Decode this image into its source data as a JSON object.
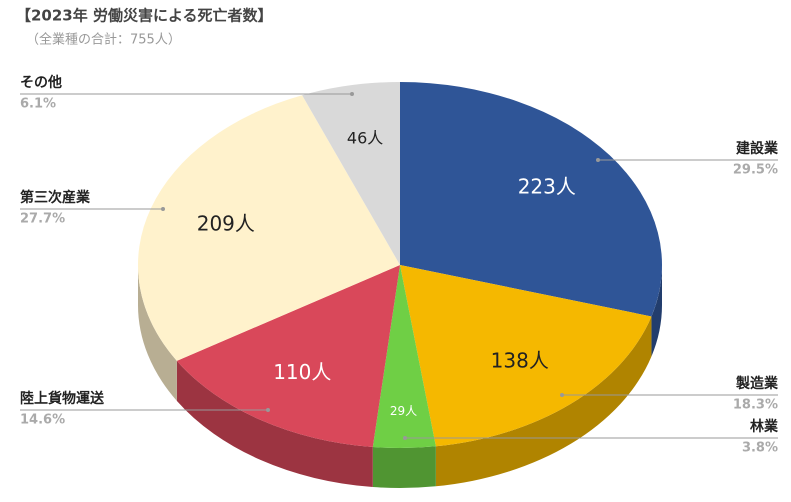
{
  "chart_data": {
    "type": "pie3d",
    "title": "【2023年 労働災害による死亡者数】",
    "subtitle": "（全業種の合計：755人）",
    "categories": [
      "建設業",
      "製造業",
      "林業",
      "陸上貨物運送",
      "第三次産業",
      "その他"
    ],
    "values": [
      223,
      138,
      29,
      110,
      209,
      46
    ],
    "value_labels": [
      "223人",
      "138人",
      "29人",
      "110人",
      "209人",
      "46人"
    ],
    "percents": [
      29.5,
      18.3,
      3.8,
      14.6,
      27.7,
      6.1
    ],
    "percent_labels": [
      "29.5%",
      "18.3%",
      "3.8%",
      "14.6%",
      "27.7%",
      "6.1%"
    ],
    "colors": [
      "#2f5597",
      "#f5b800",
      "#6fcf45",
      "#d9485a",
      "#fff2cc",
      "#d9d9d9"
    ]
  }
}
